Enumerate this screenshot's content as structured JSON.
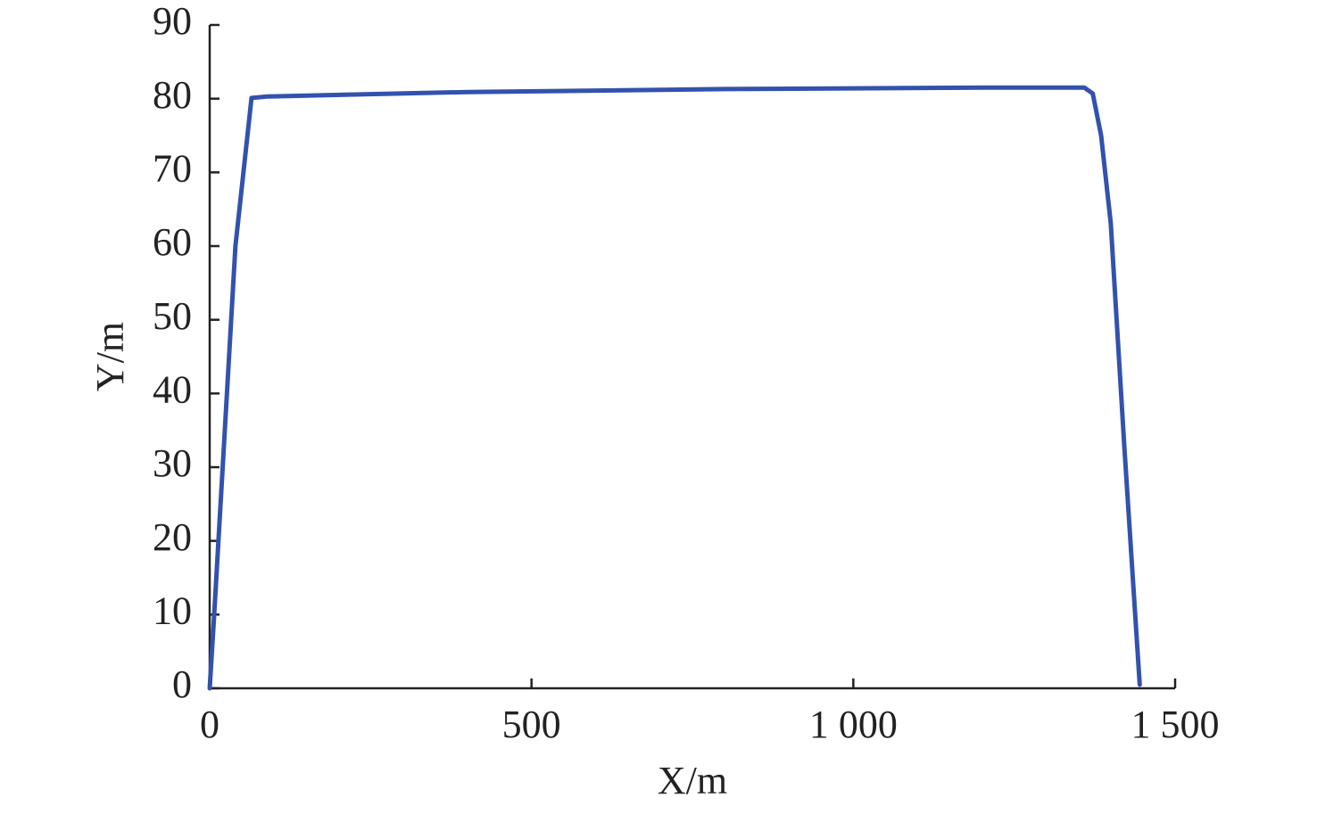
{
  "chart_data": {
    "type": "line",
    "x_label": "X/m",
    "y_label": "Y/m",
    "xlim": [
      0,
      1500
    ],
    "xticks": [
      0,
      500,
      {
        "value": 1000,
        "label": "1 000"
      },
      {
        "value": 1500,
        "label": "1 500"
      }
    ],
    "ylim": [
      0,
      90
    ],
    "yticks": [
      0,
      10,
      20,
      30,
      40,
      50,
      60,
      70,
      80,
      90
    ],
    "grid": false,
    "series": [
      {
        "color": "#3352ad",
        "x": [
          0,
          7,
          40,
          65,
          90,
          400,
          800,
          1200,
          1359,
          1372,
          1385,
          1400,
          1421,
          1438,
          1445
        ],
        "values": [
          0,
          10,
          60,
          80.1,
          80.3,
          80.9,
          81.3,
          81.5,
          81.5,
          80.7,
          75,
          63.1,
          32.9,
          9.9,
          0.5
        ]
      }
    ]
  }
}
